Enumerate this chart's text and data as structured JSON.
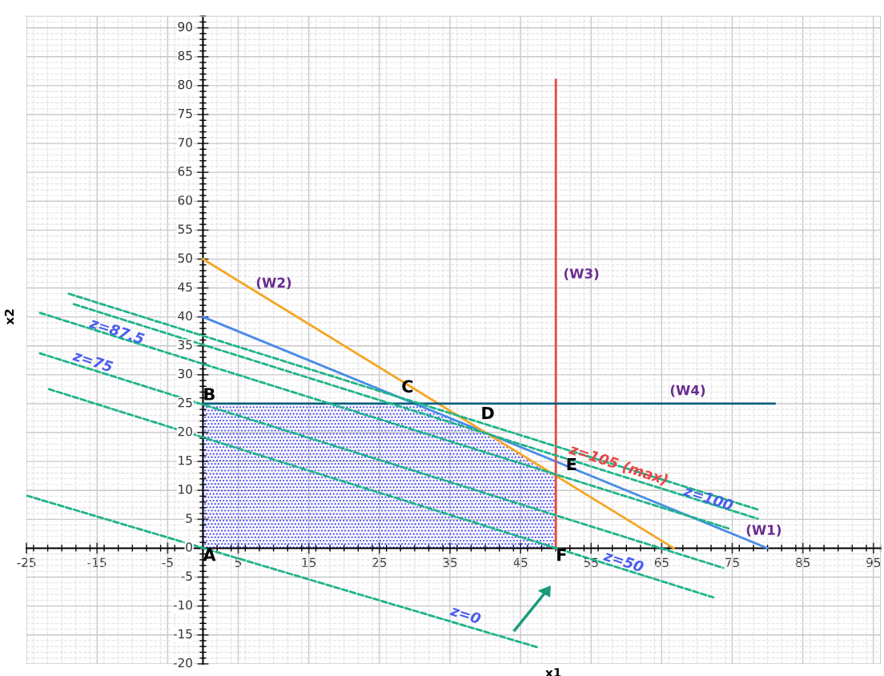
{
  "chart_data": {
    "type": "line",
    "xlabel": "x1",
    "ylabel": "x2",
    "xlim": [
      -25,
      96
    ],
    "ylim": [
      -20,
      92
    ],
    "xticks": [
      -25,
      -15,
      -5,
      5,
      15,
      25,
      35,
      45,
      55,
      65,
      75,
      85,
      95
    ],
    "yticks": [
      -20,
      -15,
      -10,
      -5,
      0,
      5,
      10,
      15,
      20,
      25,
      30,
      35,
      40,
      45,
      50,
      55,
      60,
      65,
      70,
      75,
      80,
      85,
      90
    ],
    "grid": true,
    "series": [
      {
        "type": "area",
        "color": "#3a3aff",
        "x": [
          0,
          30,
          40,
          50
        ],
        "values": [
          25,
          25,
          20,
          12.5
        ]
      },
      {
        "color": "#4a8be8",
        "x": [
          0,
          80
        ],
        "values": [
          40,
          0
        ]
      },
      {
        "color": "#f5a623",
        "x": [
          0,
          66.7
        ],
        "values": [
          50,
          0
        ]
      },
      {
        "color": "#e8473a",
        "x": [
          50,
          50
        ],
        "values": [
          0,
          81
        ]
      },
      {
        "color": "#0b5e80",
        "x": [
          0,
          81
        ],
        "values": [
          25,
          25
        ]
      },
      {
        "color": "#1fb38a",
        "line_style": "dashed",
        "x": [
          -19,
          78.6
        ],
        "values": [
          44,
          6.7
        ]
      },
      {
        "color": "#1fb38a",
        "line_style": "dashed",
        "x": [
          -18.3,
          78.6
        ],
        "values": [
          42.2,
          5.1
        ]
      },
      {
        "color": "#1fb38a",
        "line_style": "dashed",
        "x": [
          -23.1,
          74.5
        ],
        "values": [
          40.7,
          3.4
        ]
      },
      {
        "color": "#1fb38a",
        "line_style": "dashed",
        "x": [
          -23.1,
          73.7
        ],
        "values": [
          33.7,
          -3.4
        ]
      },
      {
        "color": "#1fb38a",
        "line_style": "dashed",
        "x": [
          -21.8,
          72.3
        ],
        "values": [
          27.5,
          -8.5
        ]
      },
      {
        "color": "#1fb38a",
        "line_style": "dashed",
        "x": [
          -25,
          47.3
        ],
        "values": [
          9.1,
          -17.1
        ]
      }
    ],
    "annotations": [
      {
        "text": "A",
        "x": 0,
        "y": 0
      },
      {
        "text": "B",
        "x": 0,
        "y": 25
      },
      {
        "text": "C",
        "x": 30,
        "y": 25
      },
      {
        "text": "D",
        "x": 40,
        "y": 20
      },
      {
        "text": "E",
        "x": 50,
        "y": 12.5
      },
      {
        "text": "F",
        "x": 50,
        "y": 0
      },
      {
        "text": "(W1)",
        "x": 76,
        "y": 2
      },
      {
        "text": "(W2)",
        "x": 8,
        "y": 44
      },
      {
        "text": "(W3)",
        "x": 50,
        "y": 47.3
      },
      {
        "text": "(W4)",
        "x": 68.7,
        "y": 25
      },
      {
        "text": "z=87.5",
        "x": -12.2,
        "y": 37.4
      },
      {
        "text": "z=75",
        "x": -15.6,
        "y": 30.8
      },
      {
        "text": "z=105 (max)",
        "x": 58.9,
        "y": 14.3
      },
      {
        "text": "z=100",
        "x": 71.6,
        "y": 8.5
      },
      {
        "text": "z=50",
        "x": 59.6,
        "y": -3.6
      },
      {
        "text": "z=0",
        "x": 37.2,
        "y": -13.4
      }
    ]
  }
}
